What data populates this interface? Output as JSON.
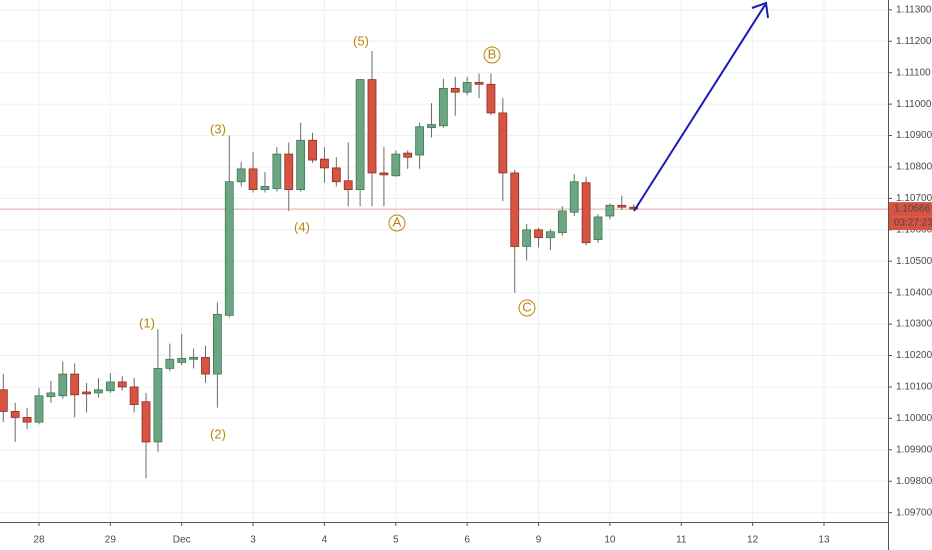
{
  "chart_data": {
    "type": "candlestick",
    "categories": [
      null,
      null,
      null,
      "28",
      null,
      null,
      null,
      null,
      null,
      "29",
      null,
      null,
      null,
      null,
      null,
      "Dec",
      null,
      null,
      null,
      null,
      null,
      "3",
      null,
      null,
      null,
      null,
      null,
      "4",
      null,
      null,
      null,
      null,
      null,
      "5",
      null,
      null,
      null,
      null,
      null,
      "6",
      null,
      null,
      null,
      null,
      null,
      "9",
      null,
      null,
      null,
      null,
      null,
      "10",
      null,
      null,
      null,
      null,
      null,
      "11",
      null,
      null,
      null,
      null,
      null,
      "12",
      null,
      null,
      null,
      null,
      null,
      "13",
      null,
      null,
      null,
      null,
      null
    ],
    "open": [
      1.10091,
      1.10022,
      1.10003,
      1.09988,
      1.10069,
      1.10072,
      1.10141,
      1.10084,
      1.10081,
      1.10088,
      1.10116,
      1.101,
      1.10053,
      1.09925,
      1.10159,
      1.10178,
      1.10188,
      1.10194,
      1.10141,
      1.10328,
      1.10753,
      1.10794,
      1.10728,
      1.10731,
      1.10841,
      1.10728,
      1.10885,
      1.10825,
      1.10797,
      1.10756,
      1.10728,
      1.11078,
      1.10781,
      1.10772,
      1.10844,
      1.10838,
      1.10925,
      1.10931,
      1.1105,
      1.11038,
      1.11069,
      1.11063,
      1.10972,
      1.10781,
      1.10547,
      1.106,
      1.10575,
      1.10591,
      1.10656,
      1.1075,
      1.10569,
      1.10644,
      1.10678,
      1.10672,
      null,
      null,
      null,
      null,
      null,
      null,
      null,
      null,
      null,
      null,
      null,
      null,
      null,
      null,
      null,
      null,
      null,
      null,
      null,
      null,
      null
    ],
    "high": [
      1.10141,
      1.1005,
      1.10034,
      1.10097,
      1.10119,
      1.10181,
      1.10175,
      1.10113,
      1.10128,
      1.10144,
      1.10134,
      1.10128,
      1.10081,
      1.10284,
      1.10238,
      1.10269,
      1.10222,
      1.10231,
      1.10369,
      1.109,
      1.10816,
      1.10847,
      1.10784,
      1.10863,
      1.10878,
      1.10941,
      1.10909,
      1.10863,
      1.10831,
      1.10878,
      1.11081,
      1.11169,
      1.10863,
      1.10853,
      1.10853,
      1.10941,
      1.11003,
      1.11081,
      1.11087,
      1.11087,
      1.11097,
      1.11097,
      1.11019,
      1.10791,
      1.10619,
      1.10606,
      1.10603,
      1.10675,
      1.10778,
      1.10769,
      1.1065,
      1.10684,
      1.10709,
      1.10681,
      null,
      null,
      null,
      null,
      null,
      null,
      null,
      null,
      null,
      null,
      null,
      null,
      null,
      null,
      null,
      null,
      null,
      null,
      null,
      null,
      null
    ],
    "low": [
      1.09988,
      1.09925,
      1.09966,
      1.09981,
      1.1005,
      1.10063,
      1.10003,
      1.10019,
      1.10066,
      1.10081,
      1.10088,
      1.10019,
      1.09809,
      1.09894,
      1.1015,
      1.10169,
      1.10159,
      1.10113,
      1.10034,
      1.10322,
      1.10738,
      1.10719,
      1.10719,
      1.10722,
      1.1066,
      1.10722,
      1.10813,
      1.1075,
      1.10738,
      1.10675,
      1.10675,
      1.10675,
      1.10675,
      1.10769,
      1.10794,
      1.10794,
      1.10894,
      1.10925,
      1.10963,
      1.11028,
      1.11019,
      1.10966,
      1.10691,
      1.104,
      1.10503,
      1.10544,
      1.10535,
      1.10581,
      1.10644,
      1.1055,
      1.10559,
      1.10634,
      1.10663,
      1.10663,
      null,
      null,
      null,
      null,
      null,
      null,
      null,
      null,
      null,
      null,
      null,
      null,
      null,
      null,
      null,
      null,
      null,
      null,
      null,
      null,
      null
    ],
    "close": [
      1.10022,
      1.10003,
      1.09988,
      1.10072,
      1.10081,
      1.10141,
      1.10075,
      1.10078,
      1.10091,
      1.10116,
      1.101,
      1.10044,
      1.09925,
      1.10159,
      1.10188,
      1.10191,
      1.10194,
      1.10141,
      1.10331,
      1.10753,
      1.10794,
      1.10728,
      1.10738,
      1.10841,
      1.10728,
      1.10885,
      1.10822,
      1.10797,
      1.10753,
      1.10728,
      1.11078,
      1.10781,
      1.10775,
      1.10841,
      1.10831,
      1.10928,
      1.10935,
      1.1105,
      1.11038,
      1.11069,
      1.11063,
      1.10972,
      1.10781,
      1.10547,
      1.106,
      1.10575,
      1.10594,
      1.1066,
      1.10753,
      1.10559,
      1.10641,
      1.10678,
      1.10672,
      1.10666,
      null,
      null,
      null,
      null,
      null,
      null,
      null,
      null,
      null,
      null,
      null,
      null,
      null,
      null,
      null,
      null,
      null,
      null,
      null,
      null,
      null
    ],
    "up_color": "#6ba583",
    "down_color": "#d75442",
    "ylim": [
      1.096703,
      1.113313
    ],
    "yticks": [
      {
        "value": 1.097,
        "label": "1.09700"
      },
      {
        "value": 1.098,
        "label": "1.09800"
      },
      {
        "value": 1.099,
        "label": "1.09900"
      },
      {
        "value": 1.1,
        "label": "1.10000"
      },
      {
        "value": 1.101,
        "label": "1.10100"
      },
      {
        "value": 1.102,
        "label": "1.10200"
      },
      {
        "value": 1.103,
        "label": "1.10300"
      },
      {
        "value": 1.104,
        "label": "1.10400"
      },
      {
        "value": 1.105,
        "label": "1.10500"
      },
      {
        "value": 1.106,
        "label": "1.10600"
      },
      {
        "value": 1.107,
        "label": "1.10700"
      },
      {
        "value": 1.108,
        "label": "1.10800"
      },
      {
        "value": 1.109,
        "label": "1.10900"
      },
      {
        "value": 1.11,
        "label": "1.11000"
      },
      {
        "value": 1.111,
        "label": "1.11100"
      },
      {
        "value": 1.112,
        "label": "1.11200"
      },
      {
        "value": 1.113,
        "label": "1.11300"
      }
    ],
    "grid": true,
    "last_price": {
      "value": 1.10666,
      "label": "1.10666"
    },
    "countdown": "03:27:23",
    "annotations": [
      {
        "label": "(1)"
      },
      {
        "label": "(2)"
      },
      {
        "label": "(3)"
      },
      {
        "label": "(4)"
      },
      {
        "label": "(5)"
      },
      {
        "label": "A"
      },
      {
        "label": "B"
      },
      {
        "label": "C"
      }
    ]
  }
}
